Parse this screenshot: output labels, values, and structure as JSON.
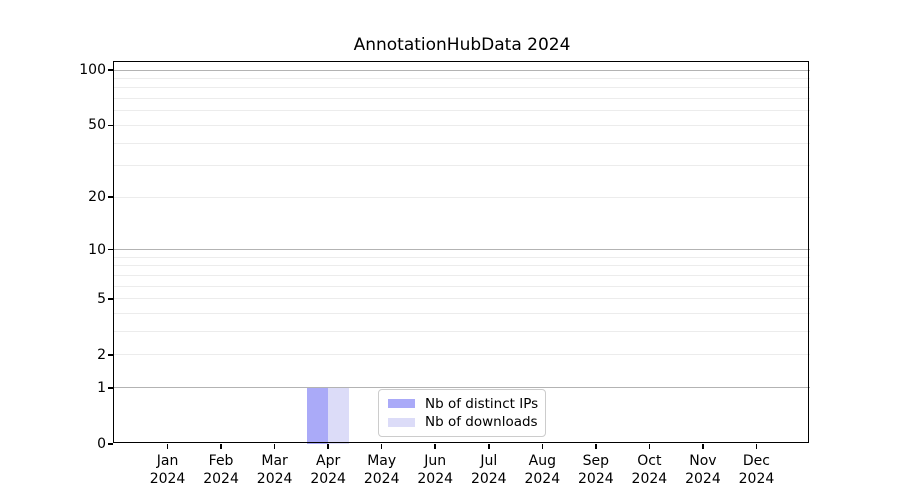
{
  "title": "AnnotationHubData 2024",
  "colors": {
    "background": "#ffffff",
    "axis": "#000000",
    "grid_major": "#b3b3b3",
    "grid_minor": "#ececec",
    "legend_border": "#cccccc",
    "distinct_ips_bar": "#aaaaf8",
    "downloads_bar": "#dcdcf8"
  },
  "legend": {
    "items": [
      {
        "label": "Nb of distinct IPs",
        "color": "#aaaaf8"
      },
      {
        "label": "Nb of downloads",
        "color": "#dcdcf8"
      }
    ]
  },
  "chart_data": {
    "type": "bar",
    "title": "AnnotationHubData 2024",
    "xlabel": "",
    "ylabel": "",
    "yscale": "log1p",
    "ylim": [
      0,
      107
    ],
    "yticks": [
      0,
      1,
      2,
      5,
      10,
      20,
      50,
      100
    ],
    "major_gridlines": [
      1,
      10,
      100
    ],
    "minor_gridlines": [
      2,
      3,
      4,
      5,
      6,
      7,
      8,
      9,
      20,
      30,
      40,
      50,
      60,
      70,
      80,
      90
    ],
    "grid": "horizontal",
    "legend_position": "bottom-center-inside",
    "categories": [
      {
        "month": "Jan",
        "year": "2024"
      },
      {
        "month": "Feb",
        "year": "2024"
      },
      {
        "month": "Mar",
        "year": "2024"
      },
      {
        "month": "Apr",
        "year": "2024"
      },
      {
        "month": "May",
        "year": "2024"
      },
      {
        "month": "Jun",
        "year": "2024"
      },
      {
        "month": "Jul",
        "year": "2024"
      },
      {
        "month": "Aug",
        "year": "2024"
      },
      {
        "month": "Sep",
        "year": "2024"
      },
      {
        "month": "Oct",
        "year": "2024"
      },
      {
        "month": "Nov",
        "year": "2024"
      },
      {
        "month": "Dec",
        "year": "2024"
      }
    ],
    "series": [
      {
        "name": "Nb of distinct IPs",
        "color": "#aaaaf8",
        "values": [
          0,
          0,
          0,
          1,
          0,
          0,
          0,
          0,
          0,
          0,
          0,
          0
        ]
      },
      {
        "name": "Nb of downloads",
        "color": "#dcdcf8",
        "values": [
          0,
          0,
          0,
          1,
          0,
          0,
          0,
          0,
          0,
          0,
          0,
          0
        ]
      }
    ]
  }
}
